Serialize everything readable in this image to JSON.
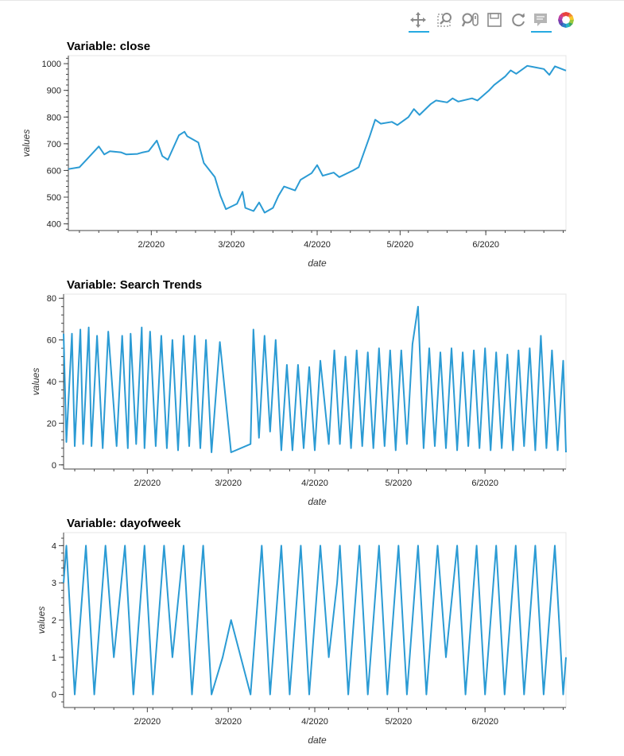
{
  "toolbar": {
    "tools": [
      {
        "name": "pan-icon",
        "active": true
      },
      {
        "name": "box-zoom-icon",
        "active": false
      },
      {
        "name": "wheel-zoom-icon",
        "active": false
      },
      {
        "name": "save-icon",
        "active": false
      },
      {
        "name": "reset-icon",
        "active": false
      },
      {
        "name": "hover-icon",
        "active": true
      },
      {
        "name": "bokeh-logo-icon",
        "active": false
      }
    ]
  },
  "colors": {
    "line": "#2b9bd4",
    "frame": "#e5e5e5",
    "axis": "#444444"
  },
  "chart_data": [
    {
      "type": "line",
      "title": "Variable: close",
      "xlabel": "date",
      "ylabel": "values",
      "xlim": [
        "2020-01-02",
        "2020-06-30"
      ],
      "ylim": [
        375,
        1030
      ],
      "xticks": [
        "2/2020",
        "3/2020",
        "4/2020",
        "5/2020",
        "6/2020"
      ],
      "yticks": [
        400,
        500,
        600,
        700,
        800,
        900,
        1000
      ],
      "series": [
        {
          "x": [
            "2020-01-02",
            "2020-01-06",
            "2020-01-09",
            "2020-01-13",
            "2020-01-15",
            "2020-01-17",
            "2020-01-21",
            "2020-01-23",
            "2020-01-27",
            "2020-01-29",
            "2020-01-31",
            "2020-02-03",
            "2020-02-05",
            "2020-02-07",
            "2020-02-11",
            "2020-02-13",
            "2020-02-14",
            "2020-02-18",
            "2020-02-20",
            "2020-02-24",
            "2020-02-26",
            "2020-02-28",
            "2020-03-03",
            "2020-03-05",
            "2020-03-06",
            "2020-03-09",
            "2020-03-11",
            "2020-03-13",
            "2020-03-16",
            "2020-03-18",
            "2020-03-20",
            "2020-03-24",
            "2020-03-26",
            "2020-03-30",
            "2020-04-01",
            "2020-04-03",
            "2020-04-07",
            "2020-04-09",
            "2020-04-14",
            "2020-04-16",
            "2020-04-20",
            "2020-04-22",
            "2020-04-24",
            "2020-04-28",
            "2020-04-30",
            "2020-05-04",
            "2020-05-06",
            "2020-05-08",
            "2020-05-12",
            "2020-05-14",
            "2020-05-18",
            "2020-05-20",
            "2020-05-22",
            "2020-05-27",
            "2020-05-29",
            "2020-06-02",
            "2020-06-04",
            "2020-06-08",
            "2020-06-10",
            "2020-06-12",
            "2020-06-16",
            "2020-06-18",
            "2020-06-22",
            "2020-06-24",
            "2020-06-26",
            "2020-06-30"
          ],
          "values": [
            605,
            612,
            645,
            690,
            660,
            672,
            668,
            660,
            662,
            668,
            672,
            712,
            654,
            640,
            732,
            745,
            728,
            705,
            628,
            575,
            505,
            455,
            475,
            520,
            460,
            448,
            480,
            442,
            460,
            505,
            540,
            525,
            565,
            590,
            620,
            580,
            592,
            575,
            600,
            612,
            728,
            790,
            775,
            782,
            770,
            800,
            830,
            808,
            848,
            862,
            855,
            870,
            858,
            870,
            862,
            898,
            920,
            952,
            975,
            962,
            992,
            988,
            980,
            958,
            990,
            974
          ]
        }
      ]
    },
    {
      "type": "line",
      "title": "Variable: Search Trends",
      "xlabel": "date",
      "ylabel": "values",
      "xlim": [
        "2020-01-02",
        "2020-06-30"
      ],
      "ylim": [
        -2,
        82
      ],
      "xticks": [
        "2/2020",
        "3/2020",
        "4/2020",
        "5/2020",
        "6/2020"
      ],
      "yticks": [
        0,
        20,
        40,
        60,
        80
      ],
      "series": [
        {
          "x": [
            "2020-01-02",
            "2020-01-03",
            "2020-01-05",
            "2020-01-06",
            "2020-01-08",
            "2020-01-09",
            "2020-01-11",
            "2020-01-12",
            "2020-01-14",
            "2020-01-16",
            "2020-01-18",
            "2020-01-21",
            "2020-01-23",
            "2020-01-25",
            "2020-01-26",
            "2020-01-28",
            "2020-01-30",
            "2020-01-31",
            "2020-02-02",
            "2020-02-04",
            "2020-02-06",
            "2020-02-08",
            "2020-02-10",
            "2020-02-12",
            "2020-02-14",
            "2020-02-16",
            "2020-02-18",
            "2020-02-20",
            "2020-02-22",
            "2020-02-24",
            "2020-02-27",
            "2020-03-02",
            "2020-03-09",
            "2020-03-10",
            "2020-03-12",
            "2020-03-14",
            "2020-03-16",
            "2020-03-18",
            "2020-03-20",
            "2020-03-22",
            "2020-03-24",
            "2020-03-26",
            "2020-03-28",
            "2020-03-30",
            "2020-04-01",
            "2020-04-03",
            "2020-04-06",
            "2020-04-08",
            "2020-04-10",
            "2020-04-12",
            "2020-04-14",
            "2020-04-16",
            "2020-04-18",
            "2020-04-20",
            "2020-04-22",
            "2020-04-24",
            "2020-04-26",
            "2020-04-28",
            "2020-04-30",
            "2020-05-02",
            "2020-05-04",
            "2020-05-06",
            "2020-05-08",
            "2020-05-10",
            "2020-05-12",
            "2020-05-14",
            "2020-05-16",
            "2020-05-18",
            "2020-05-20",
            "2020-05-22",
            "2020-05-24",
            "2020-05-26",
            "2020-05-28",
            "2020-05-30",
            "2020-06-01",
            "2020-06-03",
            "2020-06-05",
            "2020-06-07",
            "2020-06-09",
            "2020-06-11",
            "2020-06-13",
            "2020-06-15",
            "2020-06-17",
            "2020-06-19",
            "2020-06-21",
            "2020-06-23",
            "2020-06-25",
            "2020-06-27",
            "2020-06-29",
            "2020-06-30"
          ],
          "values": [
            63,
            11,
            63,
            9,
            65,
            10,
            66,
            9,
            62,
            8,
            64,
            9,
            62,
            8,
            63,
            10,
            66,
            8,
            64,
            9,
            62,
            8,
            60,
            7,
            62,
            9,
            62,
            8,
            60,
            6,
            59,
            6,
            10,
            65,
            13,
            62,
            16,
            60,
            7,
            48,
            7,
            48,
            8,
            47,
            7,
            50,
            10,
            55,
            10,
            52,
            8,
            55,
            9,
            54,
            8,
            56,
            9,
            55,
            7,
            55,
            10,
            58,
            76,
            8,
            56,
            9,
            54,
            8,
            56,
            7,
            54,
            9,
            55,
            8,
            56,
            7,
            54,
            8,
            53,
            7,
            55,
            9,
            56,
            7,
            62,
            8,
            55,
            7,
            50,
            6
          ]
        }
      ]
    },
    {
      "type": "line",
      "title": "Variable: dayofweek",
      "xlabel": "date",
      "ylabel": "values",
      "xlim": [
        "2020-01-02",
        "2020-06-30"
      ],
      "ylim": [
        -0.35,
        4.35
      ],
      "xticks": [
        "2/2020",
        "3/2020",
        "4/2020",
        "5/2020",
        "6/2020"
      ],
      "yticks": [
        0,
        1,
        2,
        3,
        4
      ],
      "series": [
        {
          "x": [
            "2020-01-02",
            "2020-01-03",
            "2020-01-06",
            "2020-01-10",
            "2020-01-13",
            "2020-01-17",
            "2020-01-20",
            "2020-01-24",
            "2020-01-27",
            "2020-01-31",
            "2020-02-03",
            "2020-02-07",
            "2020-02-10",
            "2020-02-14",
            "2020-02-17",
            "2020-02-21",
            "2020-02-24",
            "2020-02-28",
            "2020-03-02",
            "2020-03-09",
            "2020-03-13",
            "2020-03-16",
            "2020-03-20",
            "2020-03-23",
            "2020-03-27",
            "2020-03-30",
            "2020-04-03",
            "2020-04-06",
            "2020-04-09",
            "2020-04-10",
            "2020-04-13",
            "2020-04-17",
            "2020-04-20",
            "2020-04-24",
            "2020-04-27",
            "2020-05-01",
            "2020-05-04",
            "2020-05-08",
            "2020-05-11",
            "2020-05-15",
            "2020-05-18",
            "2020-05-22",
            "2020-05-25",
            "2020-05-29",
            "2020-06-01",
            "2020-06-05",
            "2020-06-08",
            "2020-06-12",
            "2020-06-15",
            "2020-06-19",
            "2020-06-22",
            "2020-06-26",
            "2020-06-29",
            "2020-06-30"
          ],
          "values": [
            3,
            4,
            0,
            4,
            0,
            4,
            1,
            4,
            0,
            4,
            0,
            4,
            1,
            4,
            0,
            4,
            0,
            1,
            2,
            0,
            4,
            0,
            4,
            0,
            4,
            0,
            4,
            1,
            3,
            4,
            0,
            4,
            0,
            4,
            0,
            4,
            0,
            4,
            0,
            4,
            1,
            4,
            0,
            4,
            0,
            4,
            0,
            4,
            0,
            4,
            0,
            4,
            0,
            1
          ]
        }
      ]
    }
  ]
}
